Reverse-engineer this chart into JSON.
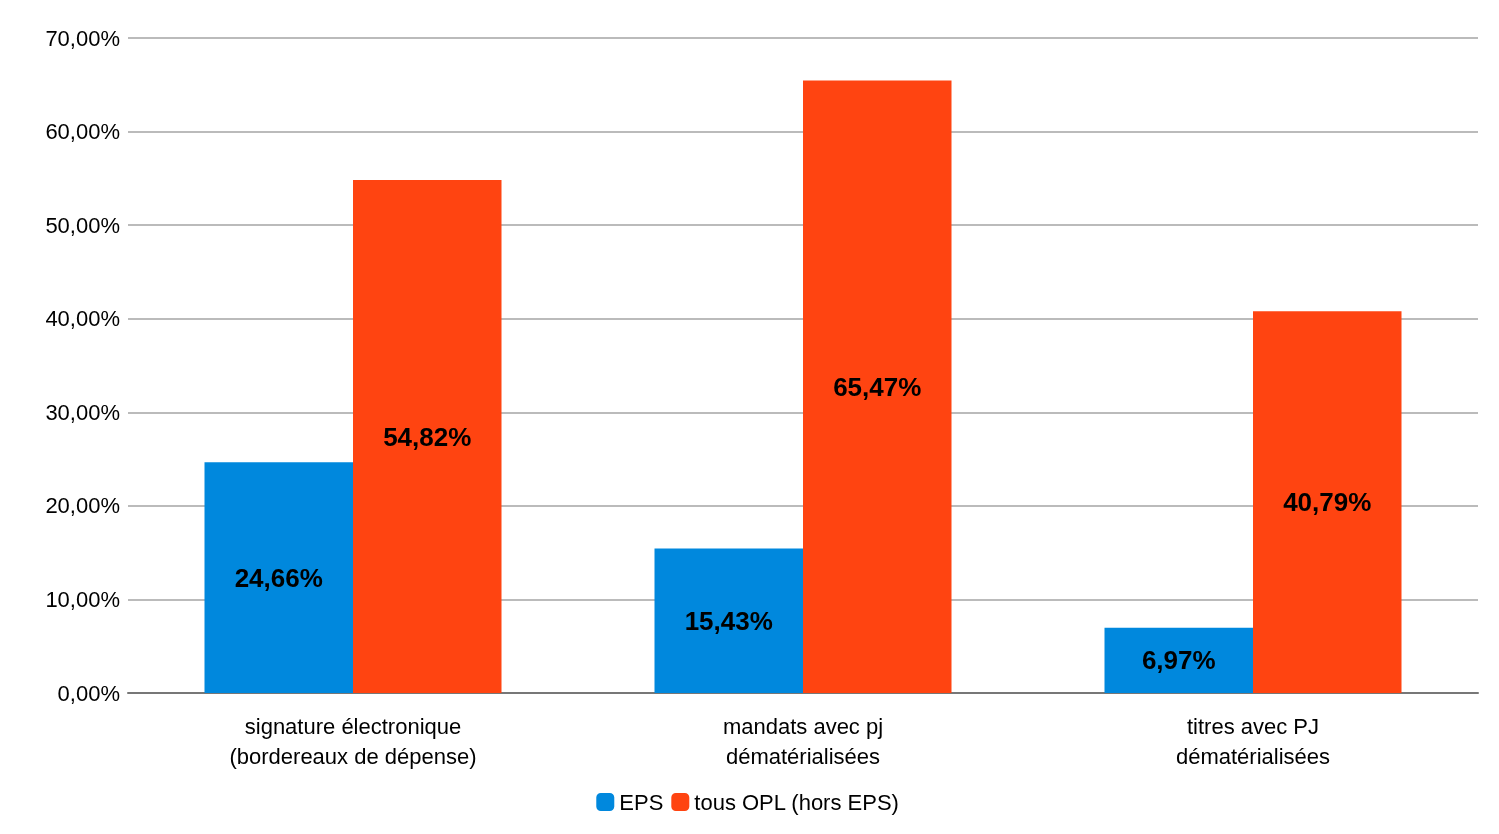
{
  "chart_data": {
    "type": "bar",
    "categories": [
      "signature électronique\n(bordereaux de dépense)",
      "mandats avec pj\ndématérialisées",
      "titres avec PJ\ndématérialisées"
    ],
    "series": [
      {
        "name": "EPS",
        "color": "#0088dd",
        "values": [
          24.66,
          15.43,
          6.97
        ],
        "value_labels": [
          "24,66%",
          "15,43%",
          "6,97%"
        ]
      },
      {
        "name": "tous OPL (hors EPS)",
        "color": "#ff4411",
        "values": [
          54.82,
          65.47,
          40.79
        ],
        "value_labels": [
          "54,82%",
          "65,47%",
          "40,79%"
        ]
      }
    ],
    "ylim": [
      0,
      70
    ],
    "yticks": [
      {
        "value": 0,
        "label": "0,00%"
      },
      {
        "value": 10,
        "label": "10,00%"
      },
      {
        "value": 20,
        "label": "20,00%"
      },
      {
        "value": 30,
        "label": "30,00%"
      },
      {
        "value": 40,
        "label": "40,00%"
      },
      {
        "value": 50,
        "label": "50,00%"
      },
      {
        "value": 60,
        "label": "60,00%"
      },
      {
        "value": 70,
        "label": "70,00%"
      }
    ],
    "grid": "y",
    "legend": "bottom"
  }
}
